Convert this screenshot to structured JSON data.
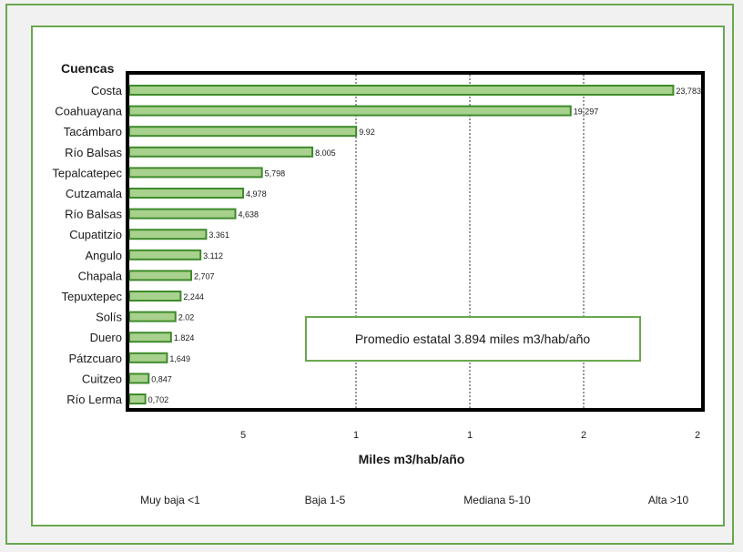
{
  "chart_data": {
    "type": "bar",
    "orientation": "horizontal",
    "title": "",
    "ylabel": "Cuencas",
    "xlabel": "Miles m3/hab/año",
    "categories": [
      "Costa",
      "Coahuayana",
      "Tacámbaro",
      "Río Balsas",
      "Tepalcatepec",
      "Cutzamala",
      "Río Balsas",
      "Cupatitzio",
      "Angulo",
      "Chapala",
      "Tepuxtepec",
      "Solís",
      "Duero",
      "Pátzcuaro",
      "Cuitzeo",
      "Río Lerma"
    ],
    "values": [
      23.783,
      19.297,
      9.92,
      8.005,
      5.798,
      4.978,
      4.638,
      3.361,
      3.112,
      2.707,
      2.244,
      2.02,
      1.824,
      1.649,
      0.847,
      0.702
    ],
    "value_labels": [
      "23,783",
      "19,297",
      "9.92",
      "8.005",
      "5,798",
      "4,978",
      "4,638",
      "3.361",
      "3.112",
      "2,707",
      "2,244",
      "2.02",
      "1.824",
      "1,649",
      "0,847",
      "0,702"
    ],
    "x_tick_labels": [
      "5",
      "1",
      "1",
      "2",
      "2"
    ],
    "xlim": [
      0,
      25
    ],
    "grid": "dashed vertical",
    "bar_color": "#a9d18e",
    "bar_border_color": "#3d8b2a",
    "annotation": "Promedio estatal 3.894 miles m3/hab/año",
    "classes": [
      "Muy baja <1",
      "Baja 1-5",
      "Mediana 5-10",
      "Alta >10"
    ]
  },
  "colors": {
    "frame": "#6aa84f",
    "background": "#f1f1f1"
  }
}
